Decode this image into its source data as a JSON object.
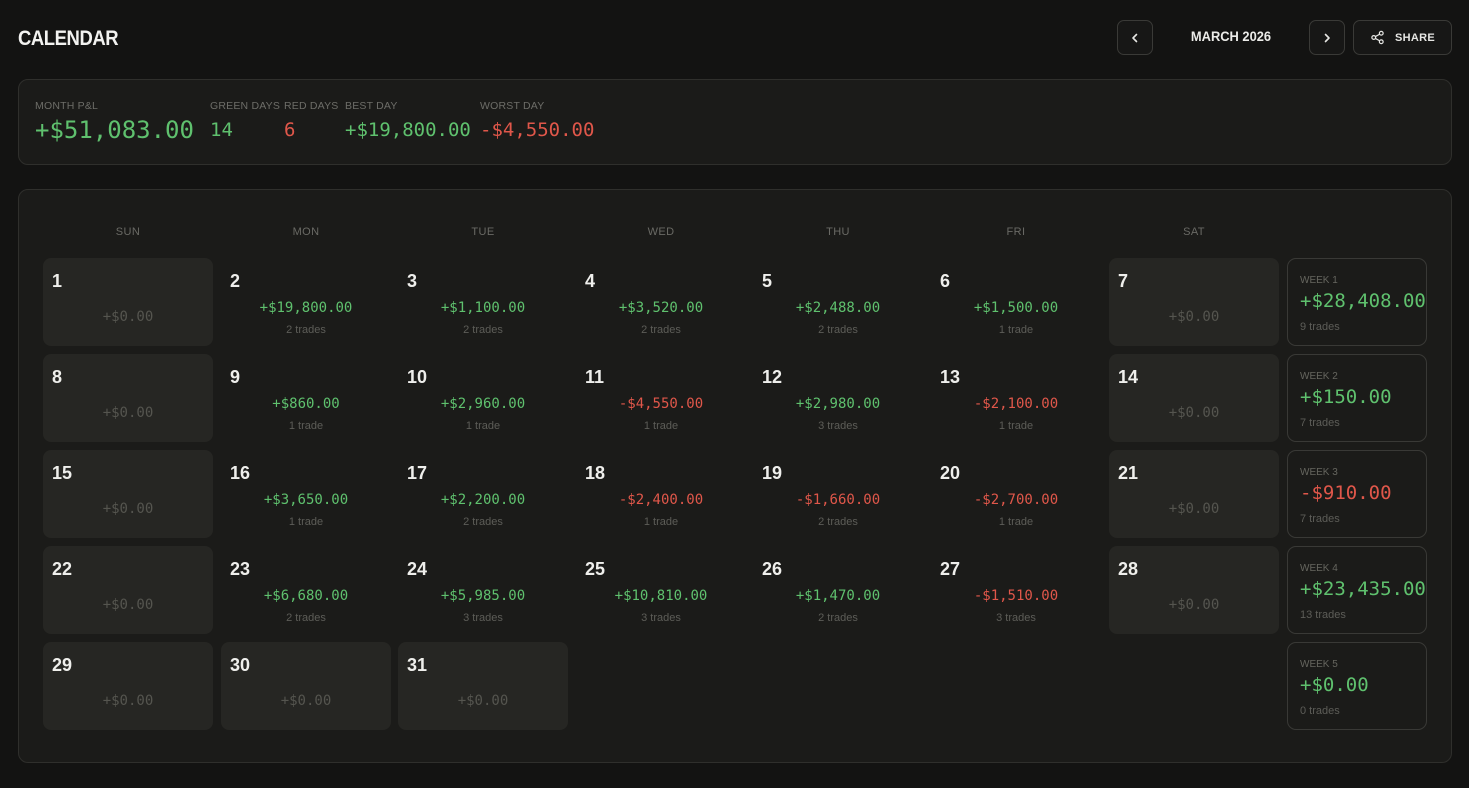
{
  "header": {
    "title": "CALENDAR",
    "month": "MARCH 2026",
    "share_label": "SHARE"
  },
  "summary": {
    "month_pnl_label": "MONTH P&L",
    "month_pnl": "+$51,083.00",
    "green_days_label": "GREEN DAYS",
    "green_days": "14",
    "red_days_label": "RED DAYS",
    "red_days": "6",
    "best_day_label": "BEST DAY",
    "best_day": "+$19,800.00",
    "worst_day_label": "WORST DAY",
    "worst_day": "-$4,550.00"
  },
  "weekdays": [
    "SUN",
    "MON",
    "TUE",
    "WED",
    "THU",
    "FRI",
    "SAT"
  ],
  "days": [
    {
      "day": "1",
      "pnl": "+$0.00",
      "trades": "",
      "state": "muted"
    },
    {
      "day": "2",
      "pnl": "+$19,800.00",
      "trades": "2 trades",
      "state": "pos"
    },
    {
      "day": "3",
      "pnl": "+$1,100.00",
      "trades": "2 trades",
      "state": "pos"
    },
    {
      "day": "4",
      "pnl": "+$3,520.00",
      "trades": "2 trades",
      "state": "pos"
    },
    {
      "day": "5",
      "pnl": "+$2,488.00",
      "trades": "2 trades",
      "state": "pos"
    },
    {
      "day": "6",
      "pnl": "+$1,500.00",
      "trades": "1 trade",
      "state": "pos"
    },
    {
      "day": "7",
      "pnl": "+$0.00",
      "trades": "",
      "state": "muted"
    },
    {
      "day": "8",
      "pnl": "+$0.00",
      "trades": "",
      "state": "muted"
    },
    {
      "day": "9",
      "pnl": "+$860.00",
      "trades": "1 trade",
      "state": "pos"
    },
    {
      "day": "10",
      "pnl": "+$2,960.00",
      "trades": "1 trade",
      "state": "pos"
    },
    {
      "day": "11",
      "pnl": "-$4,550.00",
      "trades": "1 trade",
      "state": "neg"
    },
    {
      "day": "12",
      "pnl": "+$2,980.00",
      "trades": "3 trades",
      "state": "pos"
    },
    {
      "day": "13",
      "pnl": "-$2,100.00",
      "trades": "1 trade",
      "state": "neg"
    },
    {
      "day": "14",
      "pnl": "+$0.00",
      "trades": "",
      "state": "muted"
    },
    {
      "day": "15",
      "pnl": "+$0.00",
      "trades": "",
      "state": "muted"
    },
    {
      "day": "16",
      "pnl": "+$3,650.00",
      "trades": "1 trade",
      "state": "pos"
    },
    {
      "day": "17",
      "pnl": "+$2,200.00",
      "trades": "2 trades",
      "state": "pos"
    },
    {
      "day": "18",
      "pnl": "-$2,400.00",
      "trades": "1 trade",
      "state": "neg"
    },
    {
      "day": "19",
      "pnl": "-$1,660.00",
      "trades": "2 trades",
      "state": "neg"
    },
    {
      "day": "20",
      "pnl": "-$2,700.00",
      "trades": "1 trade",
      "state": "neg"
    },
    {
      "day": "21",
      "pnl": "+$0.00",
      "trades": "",
      "state": "muted"
    },
    {
      "day": "22",
      "pnl": "+$0.00",
      "trades": "",
      "state": "muted"
    },
    {
      "day": "23",
      "pnl": "+$6,680.00",
      "trades": "2 trades",
      "state": "pos"
    },
    {
      "day": "24",
      "pnl": "+$5,985.00",
      "trades": "3 trades",
      "state": "pos"
    },
    {
      "day": "25",
      "pnl": "+$10,810.00",
      "trades": "3 trades",
      "state": "pos"
    },
    {
      "day": "26",
      "pnl": "+$1,470.00",
      "trades": "2 trades",
      "state": "pos"
    },
    {
      "day": "27",
      "pnl": "-$1,510.00",
      "trades": "3 trades",
      "state": "neg"
    },
    {
      "day": "28",
      "pnl": "+$0.00",
      "trades": "",
      "state": "muted"
    },
    {
      "day": "29",
      "pnl": "+$0.00",
      "trades": "",
      "state": "muted"
    },
    {
      "day": "30",
      "pnl": "+$0.00",
      "trades": "",
      "state": "muted"
    },
    {
      "day": "31",
      "pnl": "+$0.00",
      "trades": "",
      "state": "muted"
    }
  ],
  "weeks": [
    {
      "label": "WEEK 1",
      "pnl": "+$28,408.00",
      "trades": "9 trades",
      "state": "pos"
    },
    {
      "label": "WEEK 2",
      "pnl": "+$150.00",
      "trades": "7 trades",
      "state": "pos"
    },
    {
      "label": "WEEK 3",
      "pnl": "-$910.00",
      "trades": "7 trades",
      "state": "neg"
    },
    {
      "label": "WEEK 4",
      "pnl": "+$23,435.00",
      "trades": "13 trades",
      "state": "pos"
    },
    {
      "label": "WEEK 5",
      "pnl": "+$0.00",
      "trades": "0 trades",
      "state": "pos"
    }
  ],
  "colors": {
    "positive": "#5fc16e",
    "negative": "#e0574a",
    "muted": "#55554f"
  },
  "icons": {
    "prev": "chevron-left-icon",
    "next": "chevron-right-icon",
    "share": "share-icon"
  }
}
